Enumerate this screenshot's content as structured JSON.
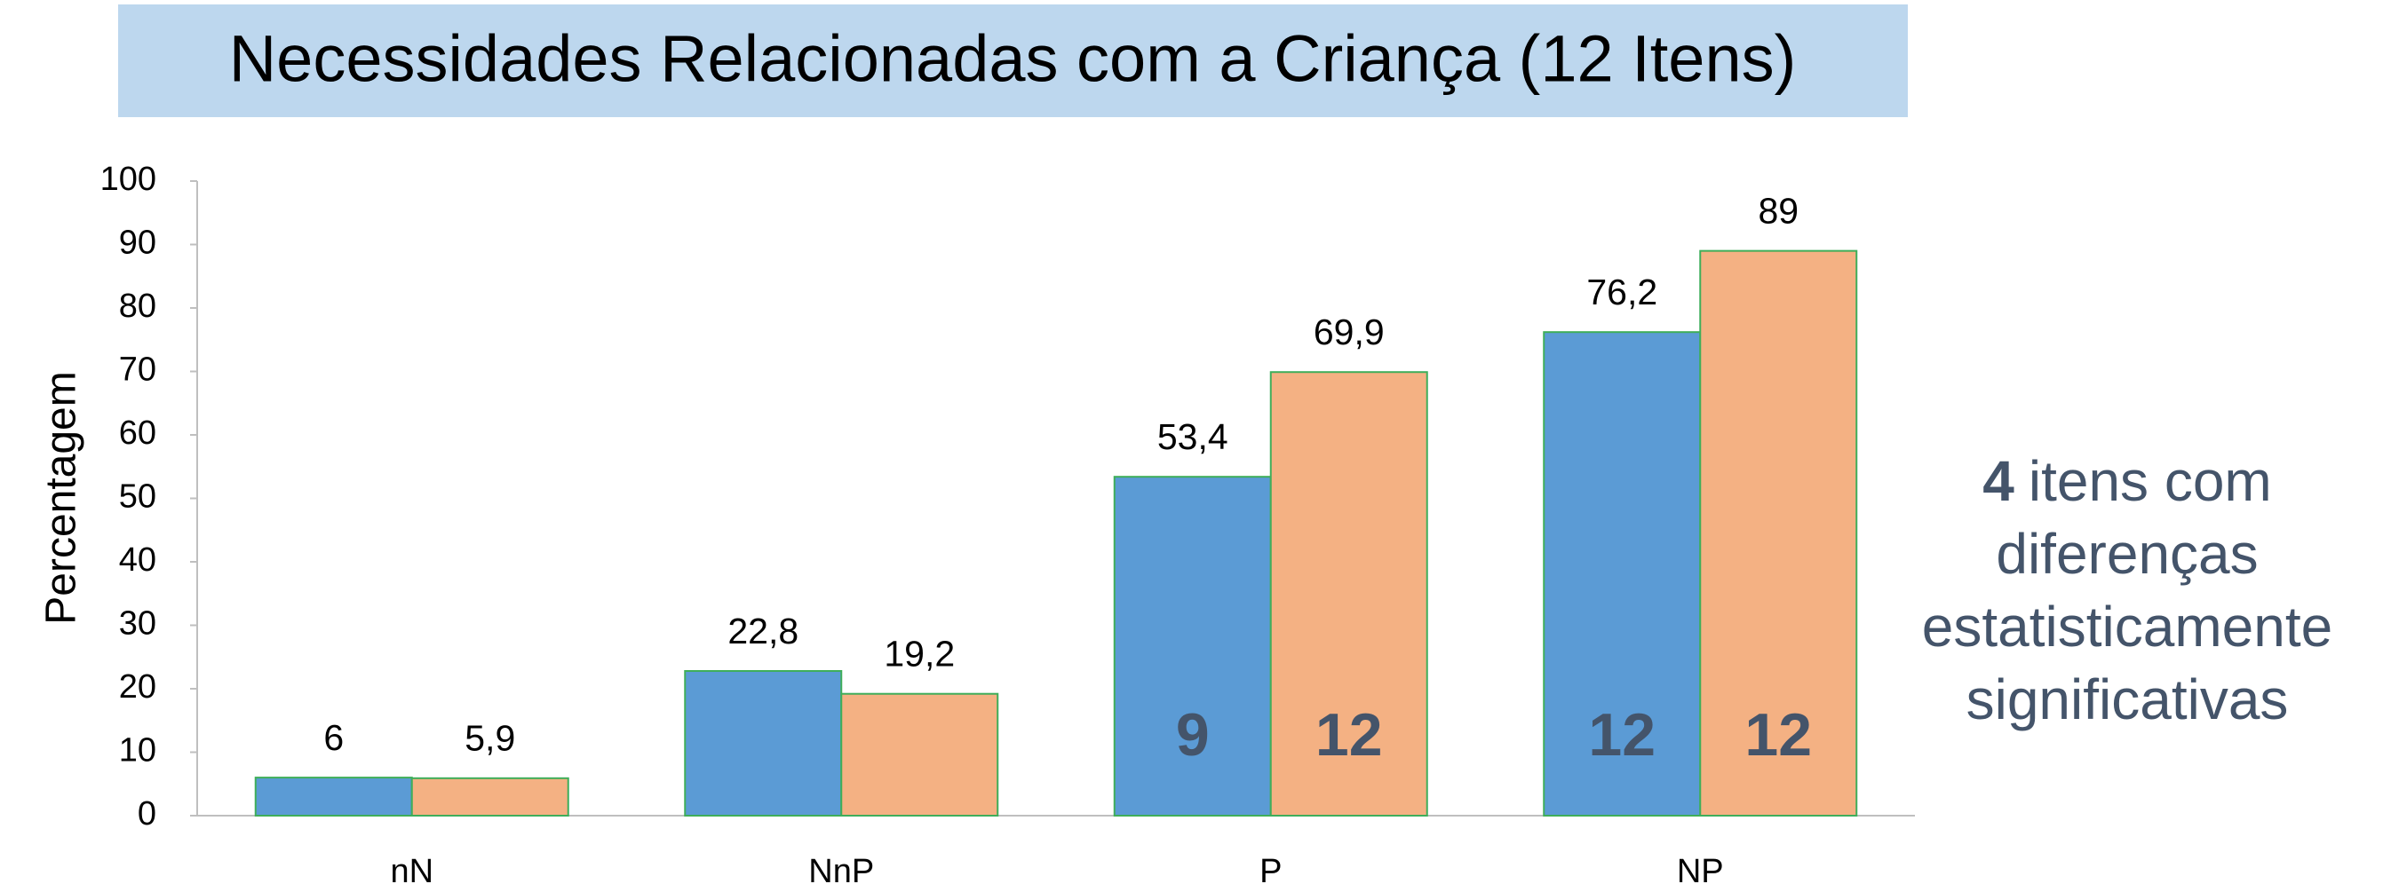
{
  "chart_data": {
    "type": "bar",
    "title": "Necessidades Relacionadas com a Criança (12 Itens)",
    "y_label": "Percentagem",
    "categories": [
      "nN",
      "NnP",
      "P",
      "NP"
    ],
    "series": [
      {
        "color": "#5b9bd5",
        "values": [
          6,
          22.8,
          53.4,
          76.2
        ],
        "value_labels": [
          "6",
          "22,8",
          "53,4",
          "76,2"
        ],
        "counts": [
          null,
          null,
          9,
          12
        ]
      },
      {
        "color": "#f4b183",
        "values": [
          5.9,
          19.2,
          69.9,
          89
        ],
        "value_labels": [
          "5,9",
          "19,2",
          "69,9",
          "89"
        ],
        "counts": [
          null,
          null,
          12,
          12
        ]
      }
    ],
    "ylim": [
      0,
      100
    ],
    "yticks": [
      0,
      10,
      20,
      30,
      40,
      50,
      60,
      70,
      80,
      90,
      100
    ],
    "grid": false,
    "annotation": {
      "bold": "4",
      "lines": [
        "itens com",
        "diferenças",
        "estatisticamente",
        "significativas"
      ]
    }
  }
}
